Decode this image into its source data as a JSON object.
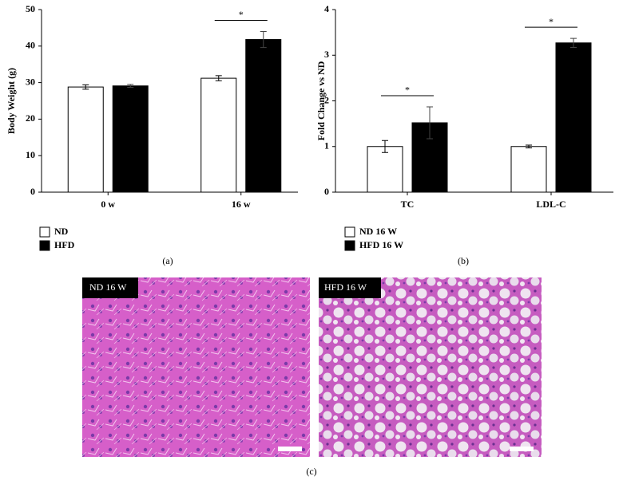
{
  "chart_data": [
    {
      "type": "bar",
      "y_label": "Body Weight (g)",
      "categories": [
        "0 w",
        "16 w"
      ],
      "series": [
        {
          "name": "ND",
          "color": "#ffffff",
          "values": [
            28.8,
            31.2
          ],
          "errors": [
            0.6,
            0.7
          ]
        },
        {
          "name": "HFD",
          "color": "#000000",
          "values": [
            29.1,
            41.8
          ],
          "errors": [
            0.4,
            2.2
          ]
        }
      ],
      "ylim": [
        0,
        50
      ],
      "yticks": [
        0,
        10,
        20,
        30,
        40,
        50
      ],
      "grid": false,
      "legend": "bottom-left",
      "significance": [
        {
          "category": "16 w",
          "label": "*"
        }
      ]
    },
    {
      "type": "bar",
      "y_label": "Fold Change vs ND",
      "categories": [
        "TC",
        "LDL-C"
      ],
      "series": [
        {
          "name": "ND 16 W",
          "color": "#ffffff",
          "values": [
            1.0,
            1.0
          ],
          "errors": [
            0.13,
            0.03
          ]
        },
        {
          "name": "HFD 16 W",
          "color": "#000000",
          "values": [
            1.52,
            3.27
          ],
          "errors": [
            0.35,
            0.1
          ]
        }
      ],
      "ylim": [
        0,
        4
      ],
      "yticks": [
        0,
        1,
        2,
        3,
        4
      ],
      "grid": false,
      "legend": "bottom-left",
      "significance": [
        {
          "category": "TC",
          "label": "*"
        },
        {
          "category": "LDL-C",
          "label": "*"
        }
      ]
    }
  ],
  "panel_labels": [
    "(a)",
    "(b)",
    "(c)"
  ],
  "micrographs": [
    {
      "label": "ND 16 W"
    },
    {
      "label": "HFD 16 W"
    }
  ]
}
